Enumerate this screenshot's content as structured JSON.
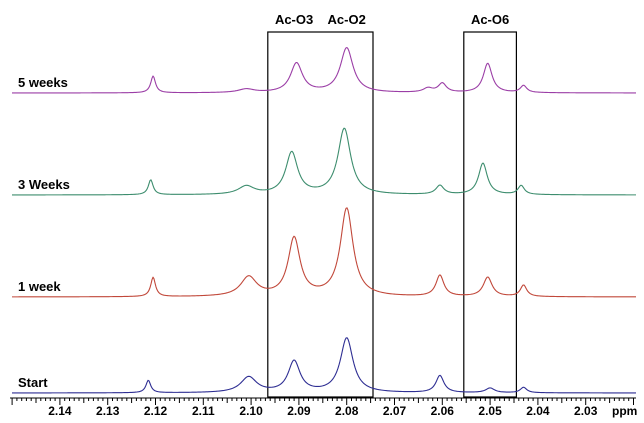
{
  "chart_data": {
    "type": "line",
    "xlabel": "ppm",
    "x_reversed": true,
    "xlim": [
      2.15,
      2.02
    ],
    "x_major_ticks": [
      2.14,
      2.13,
      2.12,
      2.11,
      2.1,
      2.09,
      2.08,
      2.07,
      2.06,
      2.05,
      2.04,
      2.03
    ],
    "x_tick_labels": [
      "2.14",
      "2.13",
      "2.12",
      "2.11",
      "2.10",
      "2.09",
      "2.08",
      "2.07",
      "2.06",
      "2.05",
      "2.04",
      "2.03"
    ],
    "region_boxes": [
      {
        "labels": [
          "Ac-O3",
          "Ac-O2"
        ],
        "from_ppm": 2.0965,
        "to_ppm": 2.0745
      },
      {
        "labels": [
          "Ac-O6"
        ],
        "from_ppm": 2.0555,
        "to_ppm": 2.0445
      }
    ],
    "series": [
      {
        "name": "5 weeks",
        "color": "#9b3ea6",
        "peaks": [
          {
            "ppm": 2.1205,
            "height": 0.24,
            "width": 0.0006
          },
          {
            "ppm": 2.101,
            "height": 0.05,
            "width": 0.002
          },
          {
            "ppm": 2.0905,
            "height": 0.42,
            "width": 0.0015
          },
          {
            "ppm": 2.08,
            "height": 0.64,
            "width": 0.0016
          },
          {
            "ppm": 2.063,
            "height": 0.06,
            "width": 0.0012
          },
          {
            "ppm": 2.06,
            "height": 0.13,
            "width": 0.001
          },
          {
            "ppm": 2.0505,
            "height": 0.42,
            "width": 0.0011
          },
          {
            "ppm": 2.043,
            "height": 0.1,
            "width": 0.0008
          }
        ]
      },
      {
        "name": "3 Weeks",
        "color": "#3d8d6e",
        "peaks": [
          {
            "ppm": 2.121,
            "height": 0.2,
            "width": 0.0006
          },
          {
            "ppm": 2.101,
            "height": 0.11,
            "width": 0.002
          },
          {
            "ppm": 2.0915,
            "height": 0.56,
            "width": 0.0015
          },
          {
            "ppm": 2.0805,
            "height": 0.88,
            "width": 0.0016
          },
          {
            "ppm": 2.0605,
            "height": 0.12,
            "width": 0.001
          },
          {
            "ppm": 2.0515,
            "height": 0.42,
            "width": 0.0011
          },
          {
            "ppm": 2.0435,
            "height": 0.12,
            "width": 0.0008
          }
        ]
      },
      {
        "name": "1 week",
        "color": "#c1483a",
        "peaks": [
          {
            "ppm": 2.1205,
            "height": 0.22,
            "width": 0.0006
          },
          {
            "ppm": 2.1005,
            "height": 0.22,
            "width": 0.002
          },
          {
            "ppm": 2.091,
            "height": 0.66,
            "width": 0.0015
          },
          {
            "ppm": 2.08,
            "height": 1.0,
            "width": 0.0016
          },
          {
            "ppm": 2.0605,
            "height": 0.24,
            "width": 0.001
          },
          {
            "ppm": 2.0505,
            "height": 0.22,
            "width": 0.0011
          },
          {
            "ppm": 2.043,
            "height": 0.13,
            "width": 0.0008
          }
        ]
      },
      {
        "name": "Start",
        "color": "#2e2e93",
        "peaks": [
          {
            "ppm": 2.1215,
            "height": 0.16,
            "width": 0.0006
          },
          {
            "ppm": 2.1005,
            "height": 0.2,
            "width": 0.002
          },
          {
            "ppm": 2.091,
            "height": 0.4,
            "width": 0.0015
          },
          {
            "ppm": 2.08,
            "height": 0.7,
            "width": 0.0016
          },
          {
            "ppm": 2.0605,
            "height": 0.22,
            "width": 0.001
          },
          {
            "ppm": 2.05,
            "height": 0.06,
            "width": 0.0011
          },
          {
            "ppm": 2.043,
            "height": 0.07,
            "width": 0.0008
          }
        ]
      }
    ]
  }
}
